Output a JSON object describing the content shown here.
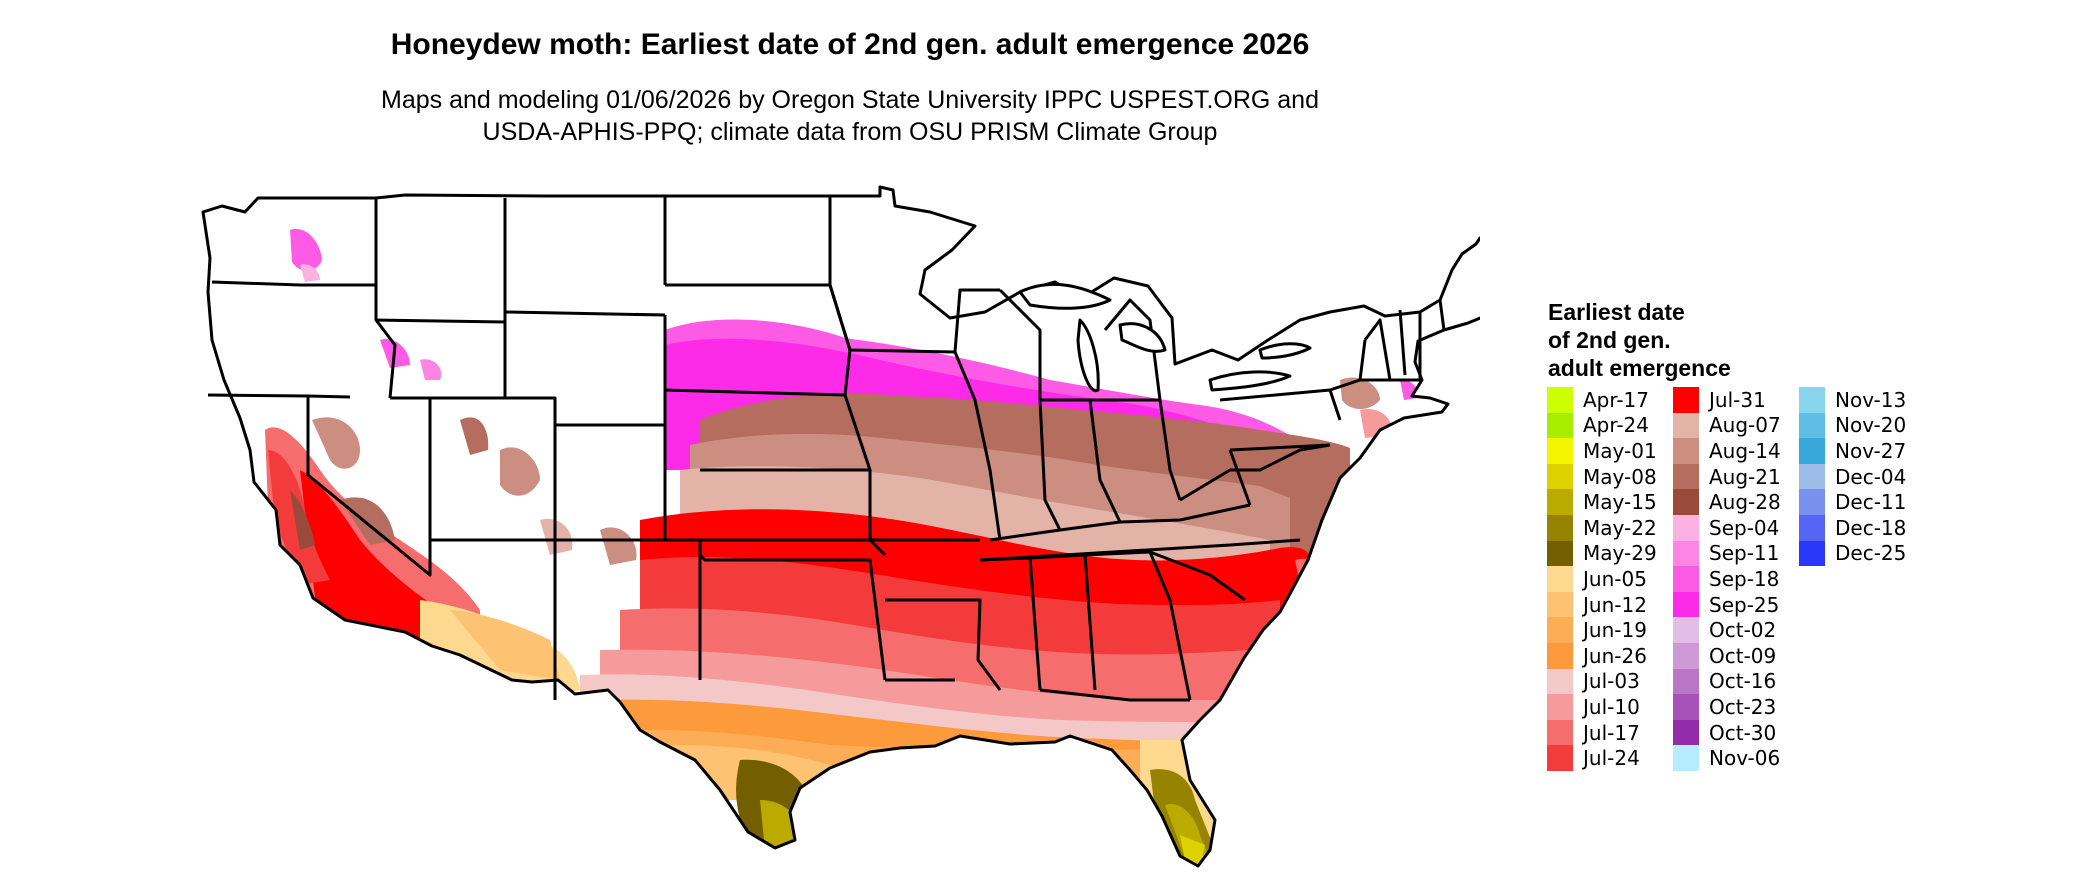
{
  "title": "Honeydew moth: Earliest date of 2nd gen. adult emergence 2026",
  "subtitle_lines": [
    "Maps and modeling 01/06/2026 by Oregon State University IPPC USPEST.ORG and",
    "USDA-APHIS-PPQ; climate data from OSU PRISM Climate Group"
  ],
  "legend": {
    "title_lines": [
      "Earliest date",
      "of 2nd gen.",
      "adult emergence"
    ],
    "columns": [
      [
        {
          "label": "Apr-17",
          "color": "#ccff00"
        },
        {
          "label": "Apr-24",
          "color": "#a6ee00"
        },
        {
          "label": "May-01",
          "color": "#f5f500"
        },
        {
          "label": "May-08",
          "color": "#ddd200"
        },
        {
          "label": "May-15",
          "color": "#bbab00"
        },
        {
          "label": "May-22",
          "color": "#968400"
        },
        {
          "label": "May-29",
          "color": "#735e00"
        },
        {
          "label": "Jun-05",
          "color": "#fdd88f"
        },
        {
          "label": "Jun-12",
          "color": "#fdc272"
        },
        {
          "label": "Jun-19",
          "color": "#fdad55"
        },
        {
          "label": "Jun-26",
          "color": "#fd9a3c"
        },
        {
          "label": "Jul-03",
          "color": "#f5c8c8"
        },
        {
          "label": "Jul-10",
          "color": "#f59b9b"
        },
        {
          "label": "Jul-17",
          "color": "#f56d6d"
        },
        {
          "label": "Jul-24",
          "color": "#f43b3b"
        }
      ],
      [
        {
          "label": "Jul-31",
          "color": "#ff0000"
        },
        {
          "label": "Aug-07",
          "color": "#e2b3a6"
        },
        {
          "label": "Aug-14",
          "color": "#cc8e80"
        },
        {
          "label": "Aug-21",
          "color": "#b46d5e"
        },
        {
          "label": "Aug-28",
          "color": "#9a4a3a"
        },
        {
          "label": "Sep-04",
          "color": "#fdb0e2"
        },
        {
          "label": "Sep-11",
          "color": "#fd85e4"
        },
        {
          "label": "Sep-18",
          "color": "#fd5ae6"
        },
        {
          "label": "Sep-25",
          "color": "#fd2be8"
        },
        {
          "label": "Oct-02",
          "color": "#e2bde5"
        },
        {
          "label": "Oct-09",
          "color": "#cf99d5"
        },
        {
          "label": "Oct-16",
          "color": "#bb75c7"
        },
        {
          "label": "Oct-23",
          "color": "#a752b8"
        },
        {
          "label": "Oct-30",
          "color": "#932ca8"
        },
        {
          "label": "Nov-06",
          "color": "#b6ecff"
        }
      ],
      [
        {
          "label": "Nov-13",
          "color": "#88d6ee"
        },
        {
          "label": "Nov-20",
          "color": "#5ebee4"
        },
        {
          "label": "Nov-27",
          "color": "#38a8da"
        },
        {
          "label": "Dec-04",
          "color": "#9dbde8"
        },
        {
          "label": "Dec-11",
          "color": "#7890ee"
        },
        {
          "label": "Dec-18",
          "color": "#5566f4"
        },
        {
          "label": "Dec-25",
          "color": "#2b38fb"
        }
      ]
    ]
  }
}
